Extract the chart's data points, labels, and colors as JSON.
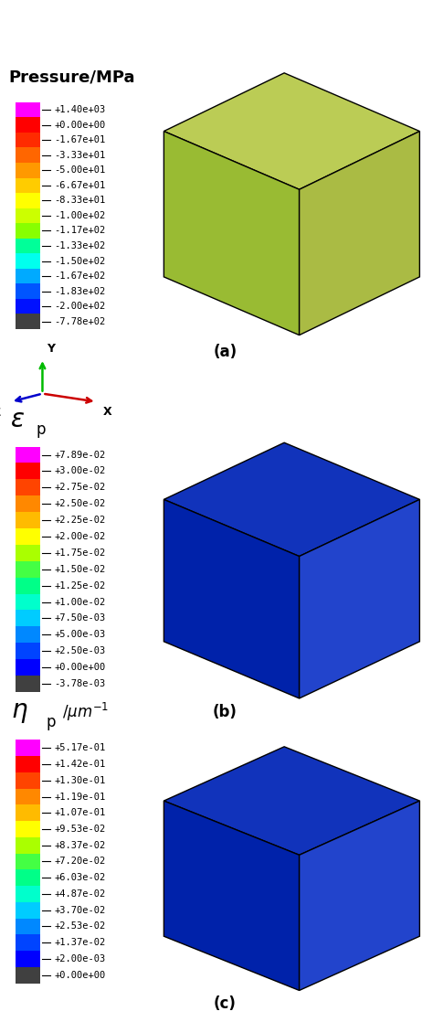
{
  "panel_a": {
    "title": "Pressure/MPa",
    "tick_labels": [
      "+1.40e+03",
      "+0.00e+00",
      "-1.67e+01",
      "-3.33e+01",
      "-5.00e+01",
      "-6.67e+01",
      "-8.33e+01",
      "-1.00e+02",
      "-1.17e+02",
      "-1.33e+02",
      "-1.50e+02",
      "-1.67e+02",
      "-1.83e+02",
      "-2.00e+02",
      "-7.78e+02"
    ],
    "colors": [
      "#FF00FF",
      "#FF0000",
      "#FF2B00",
      "#FF6600",
      "#FF9900",
      "#FFCC00",
      "#FFFF00",
      "#CCFF00",
      "#88FF00",
      "#00FF99",
      "#00FFEE",
      "#00AAFF",
      "#0055FF",
      "#0011FF",
      "#404040"
    ],
    "sublabel": "(a)"
  },
  "panel_b": {
    "title_sym": "ε",
    "title_sub": "p",
    "tick_labels": [
      "+7.89e-02",
      "+3.00e-02",
      "+2.75e-02",
      "+2.50e-02",
      "+2.25e-02",
      "+2.00e-02",
      "+1.75e-02",
      "+1.50e-02",
      "+1.25e-02",
      "+1.00e-02",
      "+7.50e-03",
      "+5.00e-03",
      "+2.50e-03",
      "+0.00e+00",
      "-3.78e-03"
    ],
    "colors": [
      "#FF00FF",
      "#FF0000",
      "#FF4400",
      "#FF8800",
      "#FFBB00",
      "#FFFF00",
      "#AAFF00",
      "#44FF44",
      "#00FF88",
      "#00FFCC",
      "#00CCFF",
      "#0088FF",
      "#0044FF",
      "#0000FF",
      "#404040"
    ],
    "sublabel": "(b)"
  },
  "panel_c": {
    "title_sym": "η",
    "title_sub": "p",
    "title_units": "/μm⁻¹",
    "tick_labels": [
      "+5.17e-01",
      "+1.42e-01",
      "+1.30e-01",
      "+1.19e-01",
      "+1.07e-01",
      "+9.53e-02",
      "+8.37e-02",
      "+7.20e-02",
      "+6.03e-02",
      "+4.87e-02",
      "+3.70e-02",
      "+2.53e-02",
      "+1.37e-02",
      "+2.00e-03",
      "+0.00e+00"
    ],
    "colors": [
      "#FF00FF",
      "#FF0000",
      "#FF4400",
      "#FF8800",
      "#FFBB00",
      "#FFFF00",
      "#AAFF00",
      "#44FF44",
      "#00FF88",
      "#00FFCC",
      "#00CCFF",
      "#0088FF",
      "#0044FF",
      "#0000FF",
      "#404040"
    ],
    "sublabel": "(c)"
  },
  "axis_indicator": {
    "Y_color": "#00BB00",
    "X_color": "#CC0000",
    "Z_color": "#0000CC"
  }
}
